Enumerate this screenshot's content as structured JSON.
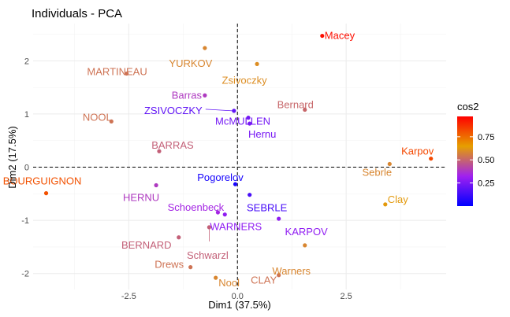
{
  "chart_data": {
    "type": "scatter",
    "title": "Individuals - PCA",
    "xlabel": "Dim1 (37.5%)",
    "ylabel": "Dim2 (17.5%)",
    "xlim": [
      -4.7,
      4.8
    ],
    "ylim": [
      -2.3,
      2.7
    ],
    "x_ticks": [
      -2.5,
      0.0,
      2.5
    ],
    "y_ticks": [
      -2,
      -1,
      0,
      1,
      2
    ],
    "grid": true,
    "legend_title": "cos2",
    "legend_position": "right",
    "legend_ticks": [
      0.25,
      0.5,
      0.75
    ],
    "color_scale": [
      "#0000ff",
      "#a020f0",
      "#e69f00",
      "#ff0000"
    ],
    "reference_lines": {
      "x": 0,
      "y": 0
    },
    "points": [
      {
        "label": "Macey",
        "x": 1.95,
        "y": 2.47,
        "cos2": 0.97
      },
      {
        "label": "YURKOV",
        "x": -0.75,
        "y": 2.24,
        "cos2": 0.6
      },
      {
        "label": "MARTINEAU",
        "x": -2.55,
        "y": 1.76,
        "cos2": 0.55
      },
      {
        "label": "Zsivoczky",
        "x": 0.45,
        "y": 1.94,
        "cos2": 0.62
      },
      {
        "label": "Barras",
        "x": -0.75,
        "y": 1.35,
        "cos2": 0.4
      },
      {
        "label": "Bernard",
        "x": 1.55,
        "y": 1.08,
        "cos2": 0.52
      },
      {
        "label": "ZSIVOCZKY",
        "x": -0.08,
        "y": 1.06,
        "cos2": 0.2
      },
      {
        "label": "McMULLEN",
        "x": 0.25,
        "y": 0.93,
        "cos2": 0.24
      },
      {
        "label": "Hernu",
        "x": 0.28,
        "y": 0.82,
        "cos2": 0.25
      },
      {
        "label": "NOOL",
        "x": -2.9,
        "y": 0.86,
        "cos2": 0.55
      },
      {
        "label": "BARRAS",
        "x": -1.8,
        "y": 0.3,
        "cos2": 0.5
      },
      {
        "label": "Karpov",
        "x": 4.45,
        "y": 0.16,
        "cos2": 0.85
      },
      {
        "label": "Sebrle",
        "x": 3.5,
        "y": 0.06,
        "cos2": 0.6
      },
      {
        "label": "Pogorelov",
        "x": -0.05,
        "y": -0.32,
        "cos2": 0.05
      },
      {
        "label": "BOURGUIGNON",
        "x": -4.4,
        "y": -0.49,
        "cos2": 0.83
      },
      {
        "label": "HERNU",
        "x": -1.87,
        "y": -0.34,
        "cos2": 0.4
      },
      {
        "label": "SEBRLE",
        "x": 0.28,
        "y": -0.52,
        "cos2": 0.15
      },
      {
        "label": "Clay",
        "x": 3.4,
        "y": -0.7,
        "cos2": 0.65
      },
      {
        "label": "Schoenbeck",
        "x": -0.45,
        "y": -0.85,
        "cos2": 0.35
      },
      {
        "label": "WARNERS",
        "x": -0.29,
        "y": -0.89,
        "cos2": 0.3
      },
      {
        "label": "KARPOV",
        "x": 0.95,
        "y": -0.97,
        "cos2": 0.3
      },
      {
        "label": "BERNARD",
        "x": -1.35,
        "y": -1.32,
        "cos2": 0.5
      },
      {
        "label": "Schwarzl",
        "x": -0.65,
        "y": -1.13,
        "cos2": 0.5
      },
      {
        "label": "Warners",
        "x": 1.55,
        "y": -1.47,
        "cos2": 0.6
      },
      {
        "label": "Drews",
        "x": -1.08,
        "y": -1.88,
        "cos2": 0.55
      },
      {
        "label": "Nool",
        "x": -0.5,
        "y": -2.08,
        "cos2": 0.6
      },
      {
        "label": "CLAY",
        "x": 0.95,
        "y": -2.03,
        "cos2": 0.55
      }
    ]
  }
}
